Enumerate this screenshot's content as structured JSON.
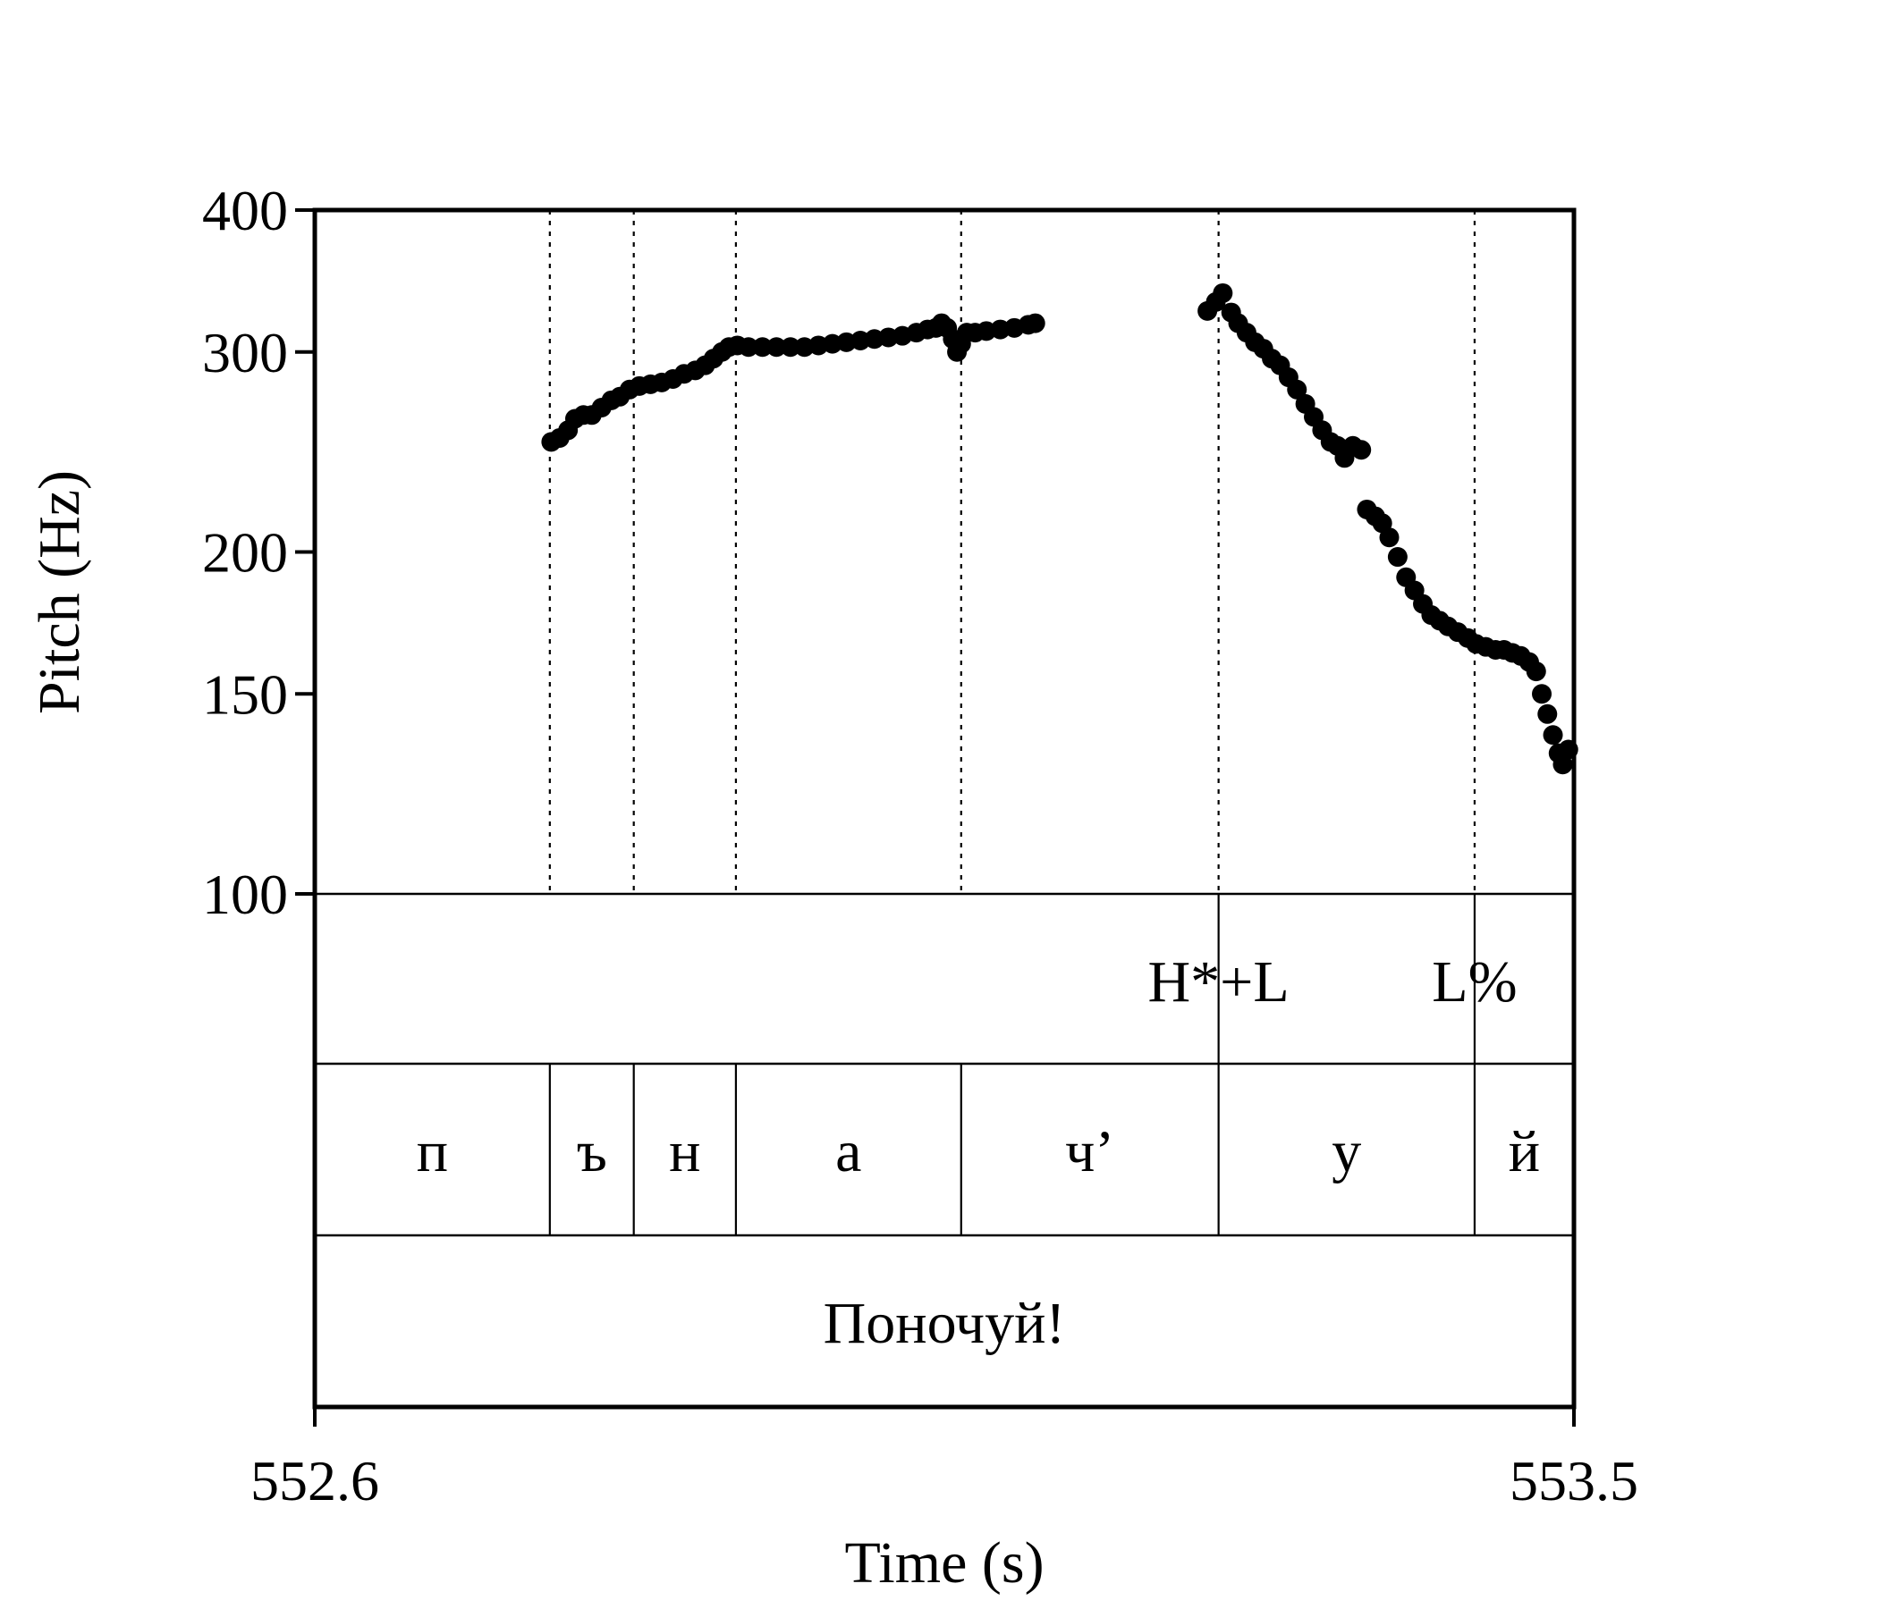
{
  "chart_data": {
    "type": "scatter",
    "xlabel": "Time (s)",
    "ylabel": "Pitch (Hz)",
    "xlim": [
      552.6,
      553.5
    ],
    "ylim": [
      100,
      400
    ],
    "y_scale": "log",
    "x_ticks": [
      "552.6",
      "553.5"
    ],
    "y_ticks": [
      {
        "value": 100,
        "label": "100"
      },
      {
        "value": 150,
        "label": "150"
      },
      {
        "value": 200,
        "label": "200"
      },
      {
        "value": 300,
        "label": "300"
      },
      {
        "value": 400,
        "label": "400"
      }
    ],
    "boundaries": [
      552.768,
      552.828,
      552.901,
      553.062,
      553.246,
      553.429
    ],
    "tones": [
      {
        "label": "H*+L",
        "time": 553.246
      },
      {
        "label": "L%",
        "time": 553.429
      }
    ],
    "segments": [
      {
        "label": "п",
        "start": 552.6,
        "end": 552.768
      },
      {
        "label": "ъ",
        "start": 552.768,
        "end": 552.828
      },
      {
        "label": "н",
        "start": 552.828,
        "end": 552.901
      },
      {
        "label": "а",
        "start": 552.901,
        "end": 553.062
      },
      {
        "label": "ч’",
        "start": 553.062,
        "end": 553.246
      },
      {
        "label": "у",
        "start": 553.246,
        "end": 553.429
      },
      {
        "label": "й",
        "start": 553.429,
        "end": 553.5
      }
    ],
    "word": {
      "label": "Поночуй!",
      "start": 552.6,
      "end": 553.5
    },
    "series": [
      {
        "points": [
          [
            552.769,
            250
          ],
          [
            552.775,
            252
          ],
          [
            552.781,
            256
          ],
          [
            552.786,
            262
          ],
          [
            552.792,
            264
          ],
          [
            552.798,
            264
          ],
          [
            552.805,
            268
          ],
          [
            552.812,
            272
          ],
          [
            552.818,
            274
          ],
          [
            552.825,
            278
          ],
          [
            552.832,
            280
          ],
          [
            552.84,
            281
          ],
          [
            552.848,
            282
          ],
          [
            552.856,
            284
          ],
          [
            552.864,
            287
          ],
          [
            552.872,
            289
          ],
          [
            552.879,
            292
          ],
          [
            552.885,
            296
          ],
          [
            552.891,
            300
          ],
          [
            552.896,
            303
          ],
          [
            552.902,
            304
          ],
          [
            552.91,
            303
          ],
          [
            552.92,
            303
          ],
          [
            552.93,
            303
          ],
          [
            552.94,
            303
          ],
          [
            552.95,
            303
          ],
          [
            552.96,
            304
          ],
          [
            552.97,
            305
          ],
          [
            552.98,
            306
          ],
          [
            552.99,
            307
          ],
          [
            553.0,
            308
          ],
          [
            553.01,
            309
          ],
          [
            553.02,
            310
          ],
          [
            553.03,
            312
          ],
          [
            553.038,
            314
          ],
          [
            553.044,
            315
          ],
          [
            553.048,
            318
          ],
          [
            553.052,
            315
          ],
          [
            553.056,
            308
          ],
          [
            553.059,
            300
          ],
          [
            553.062,
            305
          ],
          [
            553.066,
            312
          ],
          [
            553.072,
            312
          ],
          [
            553.08,
            313
          ],
          [
            553.09,
            314
          ],
          [
            553.1,
            315
          ],
          [
            553.11,
            317
          ],
          [
            553.115,
            318
          ]
        ]
      },
      {
        "points": [
          [
            553.238,
            326
          ],
          [
            553.244,
            332
          ],
          [
            553.249,
            338
          ],
          [
            553.255,
            325
          ],
          [
            553.26,
            318
          ],
          [
            553.266,
            312
          ],
          [
            553.272,
            306
          ],
          [
            553.278,
            302
          ],
          [
            553.284,
            296
          ],
          [
            553.29,
            292
          ],
          [
            553.296,
            285
          ],
          [
            553.302,
            278
          ],
          [
            553.308,
            270
          ],
          [
            553.314,
            263
          ],
          [
            553.32,
            256
          ],
          [
            553.326,
            250
          ],
          [
            553.331,
            248
          ],
          [
            553.336,
            242
          ],
          [
            553.342,
            248
          ],
          [
            553.348,
            246
          ],
          [
            553.352,
            218
          ],
          [
            553.358,
            215
          ],
          [
            553.363,
            212
          ],
          [
            553.368,
            206
          ],
          [
            553.374,
            198
          ],
          [
            553.38,
            190
          ],
          [
            553.386,
            185
          ],
          [
            553.392,
            180
          ],
          [
            553.398,
            176
          ],
          [
            553.404,
            174
          ],
          [
            553.41,
            172
          ],
          [
            553.417,
            170
          ],
          [
            553.424,
            168
          ],
          [
            553.43,
            166
          ],
          [
            553.437,
            165
          ],
          [
            553.444,
            164
          ],
          [
            553.45,
            164
          ],
          [
            553.456,
            163
          ],
          [
            553.462,
            162
          ],
          [
            553.468,
            160
          ],
          [
            553.473,
            157
          ],
          [
            553.477,
            150
          ],
          [
            553.481,
            144
          ],
          [
            553.485,
            138
          ],
          [
            553.489,
            133
          ],
          [
            553.492,
            130
          ],
          [
            553.496,
            134
          ]
        ]
      }
    ]
  }
}
